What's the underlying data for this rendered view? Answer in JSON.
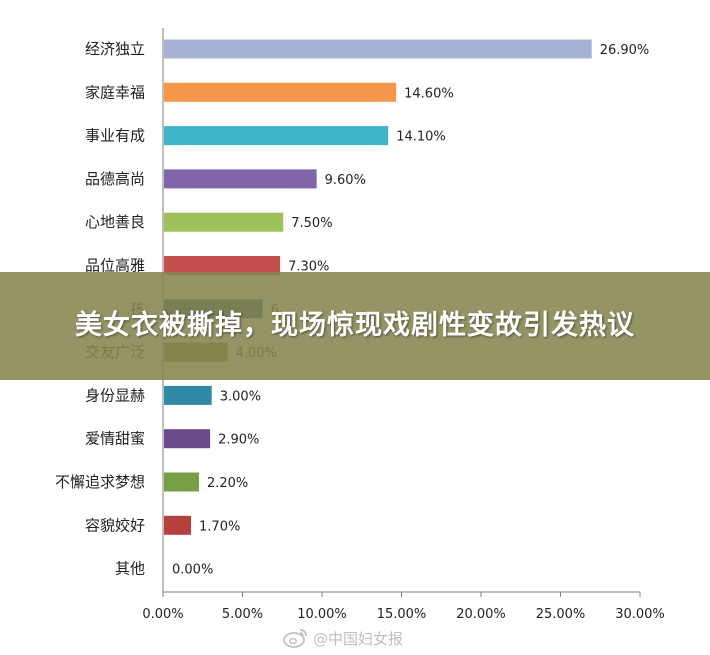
{
  "chart_data": {
    "type": "bar",
    "orientation": "horizontal",
    "categories": [
      "经济独立",
      "家庭幸福",
      "事业有成",
      "品德高尚",
      "心地善良",
      "品位高雅",
      "孩",
      "交友广泛",
      "身份显赫",
      "爱情甜蜜",
      "不懈追求梦想",
      "容貌姣好",
      "其他"
    ],
    "values": [
      26.9,
      14.6,
      14.1,
      9.6,
      7.5,
      7.3,
      6.2,
      4.0,
      3.0,
      2.9,
      2.2,
      1.7,
      0.0
    ],
    "value_labels": [
      "26.90%",
      "14.60%",
      "14.10%",
      "9.60%",
      "7.50%",
      "7.30%",
      "6.",
      "4.00%",
      "3.00%",
      "2.90%",
      "2.20%",
      "1.70%",
      "0.00%"
    ],
    "colors": [
      "#a5b4d6",
      "#f5964a",
      "#3fb4c8",
      "#8066a8",
      "#9dc25a",
      "#c4504d",
      "#2f4f7a",
      "#8b6e2e",
      "#2f8aa6",
      "#6a4a8c",
      "#76a043",
      "#b5403e",
      "#4f81bd"
    ],
    "xlim": [
      0,
      30
    ],
    "xticks": [
      "0.00%",
      "5.00%",
      "10.00%",
      "15.00%",
      "20.00%",
      "25.00%",
      "30.00%"
    ],
    "grid": false,
    "legend": "none"
  },
  "overlay": {
    "title": "美女衣被撕掉，现场惊现戏剧性变故引发热议"
  },
  "watermark": {
    "icon": "weibo-icon",
    "text": "@中国妇女报"
  }
}
